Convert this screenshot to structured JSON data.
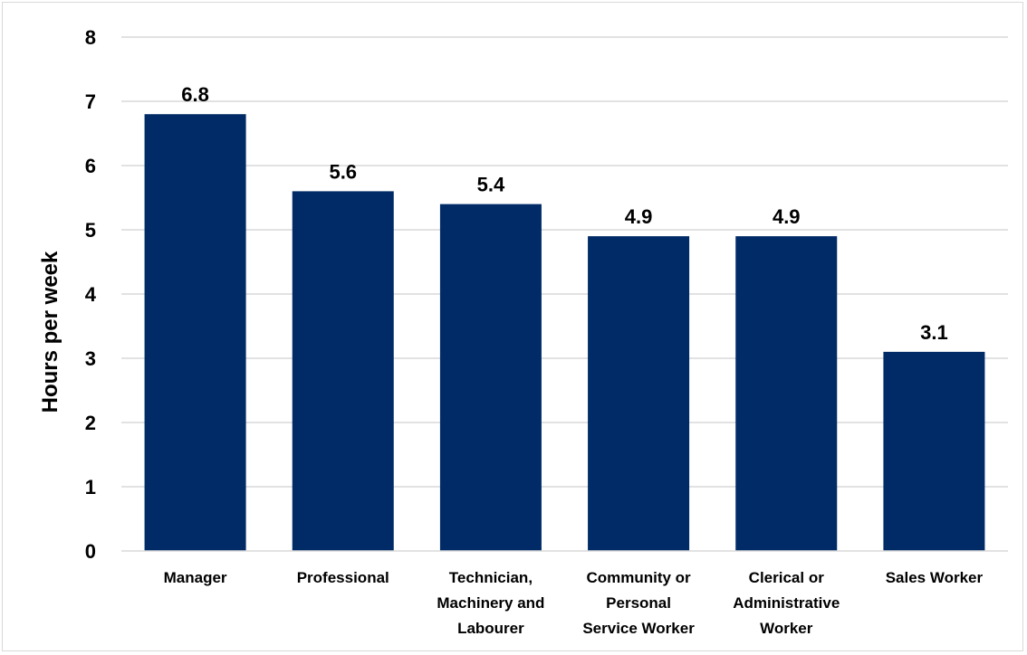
{
  "chart_data": {
    "type": "bar",
    "categories": [
      "Manager",
      "Professional",
      "Technician, Machinery and Labourer",
      "Community or Personal Service Worker",
      "Clerical or Administrative Worker",
      "Sales Worker"
    ],
    "category_lines": [
      [
        "Manager"
      ],
      [
        "Professional"
      ],
      [
        "Technician,",
        "Machinery and",
        "Labourer"
      ],
      [
        "Community or",
        "Personal",
        "Service Worker"
      ],
      [
        "Clerical or",
        "Administrative",
        "Worker"
      ],
      [
        "Sales Worker"
      ]
    ],
    "values": [
      6.8,
      5.6,
      5.4,
      4.9,
      4.9,
      3.1
    ],
    "data_labels": [
      "6.8",
      "5.6",
      "5.4",
      "4.9",
      "4.9",
      "3.1"
    ],
    "ylabel": "Hours per week",
    "ylim": [
      0,
      8
    ],
    "yticks": [
      "0",
      "1",
      "2",
      "3",
      "4",
      "5",
      "6",
      "7",
      "8"
    ],
    "grid": true,
    "bar_color": "#002b66",
    "grid_color": "#d9d9d9"
  }
}
